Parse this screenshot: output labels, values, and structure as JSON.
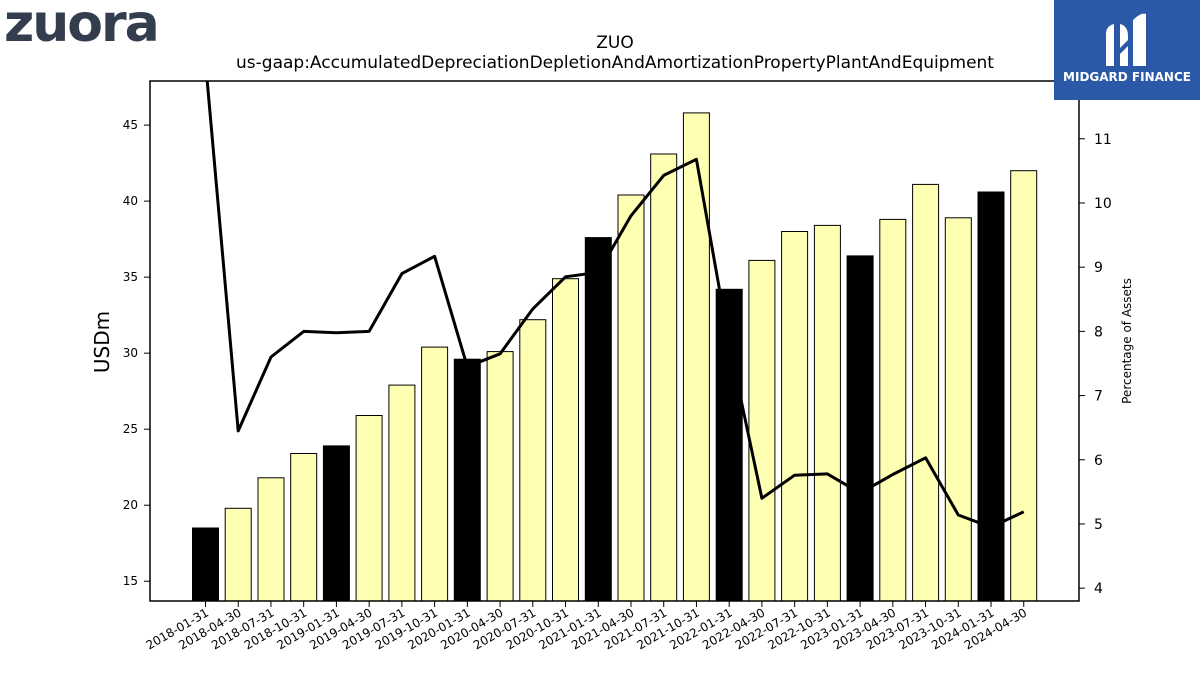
{
  "logos": {
    "left": "zuora",
    "right": "MIDGARD FINANCE"
  },
  "chart_data": {
    "type": "bar",
    "title": "ZUO",
    "subtitle": "us-gaap:AccumulatedDepreciationDepletionAndAmortizationPropertyPlantAndEquipment",
    "ylabel": "USDm",
    "y2label": "Percentage of Assets",
    "ylim": [
      13.7,
      47.9
    ],
    "y2lim": [
      3.8,
      11.9
    ],
    "yticks": [
      15,
      20,
      25,
      30,
      35,
      40,
      45
    ],
    "y2ticks": [
      4,
      5,
      6,
      7,
      8,
      9,
      10,
      11
    ],
    "categories": [
      "2018-01-31",
      "2018-04-30",
      "2018-07-31",
      "2018-10-31",
      "2019-01-31",
      "2019-04-30",
      "2019-07-31",
      "2019-10-31",
      "2020-01-31",
      "2020-04-30",
      "2020-07-31",
      "2020-10-31",
      "2021-01-31",
      "2021-04-30",
      "2021-07-31",
      "2021-10-31",
      "2022-01-31",
      "2022-04-30",
      "2022-07-31",
      "2022-10-31",
      "2023-01-31",
      "2023-04-30",
      "2023-07-31",
      "2023-10-31",
      "2024-01-31",
      "2024-04-30"
    ],
    "series": [
      {
        "type": "bar",
        "values": [
          18.5,
          19.8,
          21.8,
          23.4,
          23.9,
          25.9,
          27.9,
          30.4,
          29.6,
          30.1,
          32.2,
          34.9,
          37.6,
          40.4,
          43.1,
          45.8,
          34.2,
          36.1,
          38.0,
          38.4,
          36.4,
          38.8,
          41.1,
          38.9,
          40.6,
          42.0
        ],
        "fiscal_year_end": [
          true,
          false,
          false,
          false,
          true,
          false,
          false,
          false,
          true,
          false,
          false,
          false,
          true,
          false,
          false,
          false,
          true,
          false,
          false,
          false,
          true,
          false,
          false,
          false,
          true,
          false
        ]
      },
      {
        "type": "line",
        "axis": "right",
        "values": [
          12.2,
          6.45,
          7.6,
          8.0,
          7.98,
          8.0,
          8.9,
          9.17,
          7.45,
          7.65,
          8.35,
          8.85,
          8.92,
          9.8,
          10.43,
          10.68,
          7.8,
          5.4,
          5.76,
          5.78,
          5.48,
          5.77,
          6.03,
          5.14,
          4.95,
          5.19
        ]
      }
    ],
    "colors": {
      "bar_regular": "#ffffb3",
      "bar_fiscal_year_end": "#000000",
      "bar_edge": "#000000",
      "line": "#000000"
    },
    "grid": false,
    "legend": "none"
  }
}
